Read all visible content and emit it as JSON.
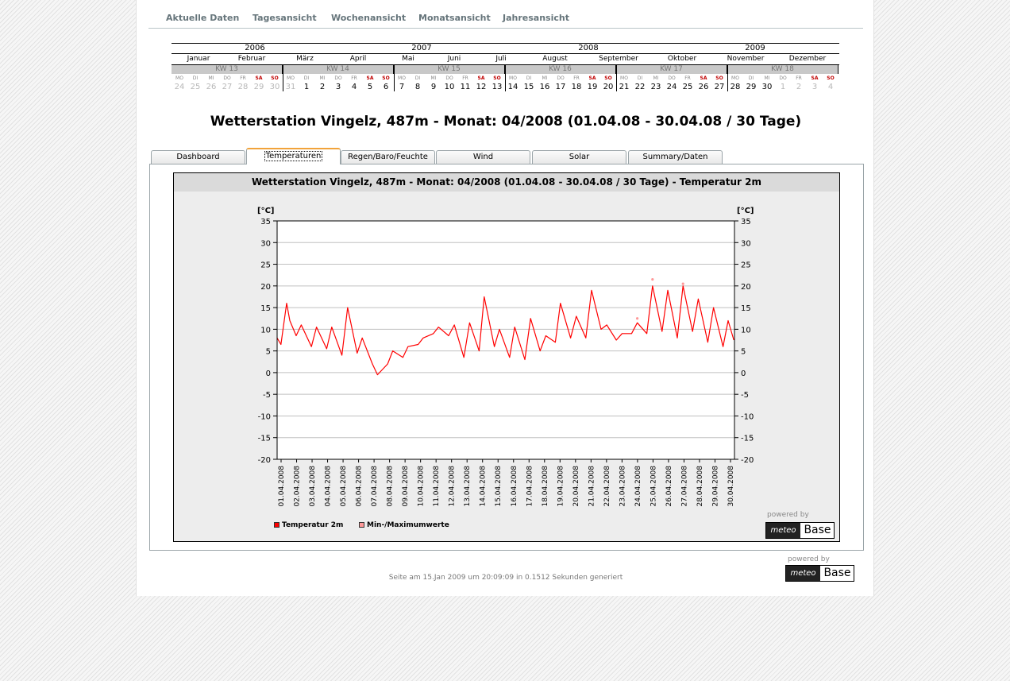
{
  "nav": {
    "items": [
      "Aktuelle Daten",
      "Tagesansicht",
      "Wochenansicht",
      "Monatsansicht",
      "Jahresansicht"
    ]
  },
  "calendar": {
    "years": [
      "2006",
      "2007",
      "2008",
      "2009"
    ],
    "months": [
      "Januar",
      "Februar",
      "März",
      "April",
      "Mai",
      "Juni",
      "Juli",
      "August",
      "September",
      "Oktober",
      "November",
      "Dezember"
    ],
    "weeks": [
      {
        "label": "KW 13",
        "weekdays": [
          "MO",
          "DI",
          "MI",
          "DO",
          "FR",
          "SA",
          "SO"
        ],
        "days": [
          "24",
          "25",
          "26",
          "27",
          "28",
          "29",
          "30"
        ]
      },
      {
        "label": "KW 14",
        "weekdays": [
          "MO",
          "DI",
          "MI",
          "DO",
          "FR",
          "SA",
          "SO"
        ],
        "days": [
          "31",
          "1",
          "2",
          "3",
          "4",
          "5",
          "6"
        ]
      },
      {
        "label": "KW 15",
        "weekdays": [
          "MO",
          "DI",
          "MI",
          "DO",
          "FR",
          "SA",
          "SO"
        ],
        "days": [
          "7",
          "8",
          "9",
          "10",
          "11",
          "12",
          "13"
        ]
      },
      {
        "label": "KW 16",
        "weekdays": [
          "MO",
          "DI",
          "MI",
          "DO",
          "FR",
          "SA",
          "SO"
        ],
        "days": [
          "14",
          "15",
          "16",
          "17",
          "18",
          "19",
          "20"
        ]
      },
      {
        "label": "KW 17",
        "weekdays": [
          "MO",
          "DI",
          "MI",
          "DO",
          "FR",
          "SA",
          "SO"
        ],
        "days": [
          "21",
          "22",
          "23",
          "24",
          "25",
          "26",
          "27"
        ]
      },
      {
        "label": "KW 18",
        "weekdays": [
          "MO",
          "DI",
          "MI",
          "DO",
          "FR",
          "SA",
          "SO"
        ],
        "days": [
          "28",
          "29",
          "30",
          "1",
          "2",
          "3",
          "4"
        ]
      }
    ]
  },
  "title": "Wetterstation Vingelz, 487m - Monat: 04/2008 (01.04.08 - 30.04.08 / 30 Tage)",
  "tabs": [
    "Dashboard",
    "Temperaturen",
    "Regen/Baro/Feuchte",
    "Wind",
    "Solar",
    "Summary/Daten"
  ],
  "active_tab": "Temperaturen",
  "powered_by": "powered by",
  "logo": {
    "left": "meteo",
    "right": "Base"
  },
  "footer": "Seite am 15.Jan 2009 um 20:09:09 in 0.1512 Sekunden generiert",
  "colors": {
    "series": "#ff0000",
    "minmax": "#ff9999",
    "tab_accent": "#f2a33a"
  },
  "chart_data": {
    "type": "line",
    "title": "Wetterstation Vingelz, 487m - Monat: 04/2008 (01.04.08 - 30.04.08 / 30 Tage) - Temperatur 2m",
    "ylabel_left": "[°C]",
    "ylabel_right": "[°C]",
    "ylim": [
      -20,
      35
    ],
    "yticks": [
      35,
      30,
      25,
      20,
      15,
      10,
      5,
      0,
      -5,
      -10,
      -15,
      -20
    ],
    "grid": true,
    "legend_position": "bottom-left",
    "x_tick_labels": [
      "01.04.2008",
      "02.04.2008",
      "03.04.2008",
      "04.04.2008",
      "05.04.2008",
      "06.04.2008",
      "07.04.2008",
      "08.04.2008",
      "09.04.2008",
      "10.04.2008",
      "11.04.2008",
      "12.04.2008",
      "13.04.2008",
      "14.04.2008",
      "15.04.2008",
      "16.04.2008",
      "17.04.2008",
      "18.04.2008",
      "19.04.2008",
      "20.04.2008",
      "21.04.2008",
      "22.04.2008",
      "23.04.2008",
      "24.04.2008",
      "25.04.2008",
      "26.04.2008",
      "27.04.2008",
      "28.04.2008",
      "29.04.2008",
      "30.04.2008"
    ],
    "series": [
      {
        "name": "Temperatur 2m",
        "x": [
          "2008-04-01 00:00",
          "2008-04-01 06:00",
          "2008-04-01 15:00",
          "2008-04-01 20:00",
          "2008-04-02 06:00",
          "2008-04-02 14:00",
          "2008-04-03 06:00",
          "2008-04-03 14:00",
          "2008-04-04 06:00",
          "2008-04-04 14:00",
          "2008-04-05 06:00",
          "2008-04-05 15:00",
          "2008-04-06 06:00",
          "2008-04-06 14:00",
          "2008-04-07 06:00",
          "2008-04-07 14:00",
          "2008-04-08 06:00",
          "2008-04-08 14:00",
          "2008-04-09 06:00",
          "2008-04-09 14:00",
          "2008-04-10 06:00",
          "2008-04-10 14:00",
          "2008-04-11 06:00",
          "2008-04-11 14:00",
          "2008-04-12 06:00",
          "2008-04-12 15:00",
          "2008-04-13 06:00",
          "2008-04-13 15:00",
          "2008-04-14 06:00",
          "2008-04-14 14:00",
          "2008-04-15 06:00",
          "2008-04-15 14:00",
          "2008-04-16 06:00",
          "2008-04-16 14:00",
          "2008-04-17 06:00",
          "2008-04-17 15:00",
          "2008-04-18 06:00",
          "2008-04-18 15:00",
          "2008-04-19 06:00",
          "2008-04-19 14:00",
          "2008-04-20 06:00",
          "2008-04-20 15:00",
          "2008-04-21 06:00",
          "2008-04-21 15:00",
          "2008-04-22 06:00",
          "2008-04-22 15:00",
          "2008-04-23 06:00",
          "2008-04-23 15:00",
          "2008-04-24 06:00",
          "2008-04-24 15:00",
          "2008-04-25 06:00",
          "2008-04-25 15:00",
          "2008-04-26 06:00",
          "2008-04-26 15:00",
          "2008-04-27 06:00",
          "2008-04-27 15:00",
          "2008-04-28 06:00",
          "2008-04-28 15:00",
          "2008-04-29 06:00",
          "2008-04-29 15:00",
          "2008-04-30 06:00",
          "2008-04-30 14:00",
          "2008-04-30 23:00"
        ],
        "values": [
          8,
          6.5,
          16,
          12,
          8.5,
          11,
          6,
          10.5,
          5.5,
          10.5,
          4,
          15,
          4.5,
          8,
          2,
          -0.5,
          2,
          5,
          3.5,
          6,
          6.5,
          8,
          9,
          10.5,
          8.5,
          11,
          3.5,
          11.5,
          5,
          17.5,
          6,
          10,
          3.5,
          10.5,
          3,
          12.5,
          5,
          8.5,
          7,
          16,
          8,
          13,
          8,
          19,
          10,
          11,
          7.5,
          9,
          9,
          11.5,
          9,
          20,
          9.5,
          19,
          8,
          20,
          9.5,
          17,
          7,
          15,
          6,
          12,
          7.5
        ]
      },
      {
        "name": "Min-/Maximumwerte",
        "x": [
          "2008-04-24 15:00",
          "2008-04-25 15:00",
          "2008-04-27 15:00"
        ],
        "values": [
          12.5,
          21.5,
          20.5
        ]
      }
    ]
  }
}
